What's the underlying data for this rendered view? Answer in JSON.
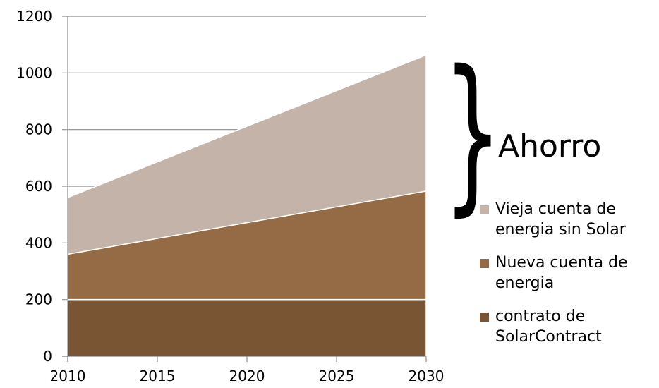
{
  "chart_data": {
    "type": "area",
    "stacked": true,
    "x": [
      2010,
      2030
    ],
    "series": [
      {
        "name": "contrato de SolarContract",
        "values": [
          200,
          200
        ],
        "color": "#7a5534"
      },
      {
        "name": "Nueva cuenta de energia",
        "values": [
          160,
          383
        ],
        "color": "#946b44"
      },
      {
        "name": "Vieja cuenta de energia sin Solar",
        "values": [
          200,
          480
        ],
        "color": "#c4b3a8"
      }
    ],
    "xticks": [
      "2010",
      "2015",
      "2020",
      "2025",
      "2030"
    ],
    "yticks": [
      "0",
      "200",
      "400",
      "600",
      "800",
      "1000",
      "1200"
    ],
    "xlim": [
      2010,
      2030
    ],
    "ylim": [
      0,
      1200
    ],
    "grid": true,
    "legend_position": "right",
    "annotation": "Ahorro"
  },
  "legend_order": [
    2,
    1,
    0
  ]
}
